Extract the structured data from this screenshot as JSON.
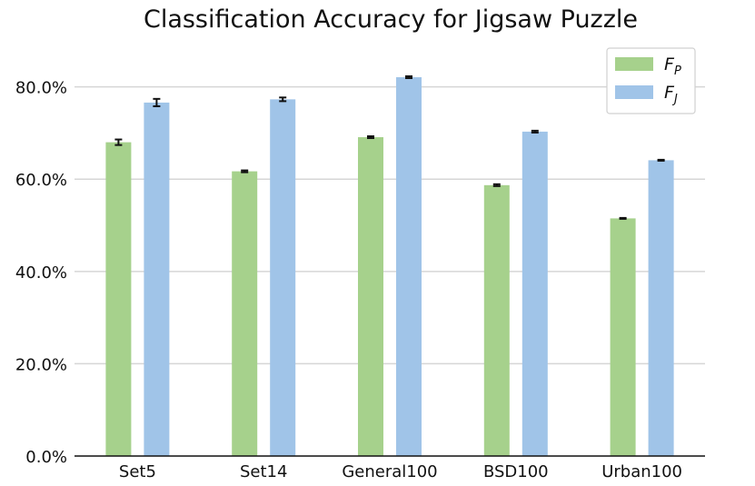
{
  "chart_data": {
    "type": "bar",
    "title": "Classification Accuracy for Jigsaw Puzzle",
    "xlabel": "",
    "ylabel": "",
    "categories": [
      "Set5",
      "Set14",
      "General100",
      "BSD100",
      "Urban100"
    ],
    "series": [
      {
        "name": "F_P",
        "label_main": "F",
        "label_sub": "P",
        "color": "#a6d18c",
        "values": [
          68.0,
          61.7,
          69.1,
          58.7,
          51.5
        ],
        "errors": [
          0.6,
          0.2,
          0.2,
          0.2,
          0.1
        ]
      },
      {
        "name": "F_J",
        "label_main": "F",
        "label_sub": "J",
        "color": "#a0c4e8",
        "values": [
          76.6,
          77.3,
          82.1,
          70.3,
          64.1
        ],
        "errors": [
          0.8,
          0.4,
          0.2,
          0.2,
          0.1
        ]
      }
    ],
    "ylim": [
      0,
      88
    ],
    "yticks": [
      0,
      20,
      40,
      60,
      80
    ],
    "ytick_labels": [
      "0.0%",
      "20.0%",
      "40.0%",
      "60.0%",
      "80.0%"
    ],
    "grid": "horizontal",
    "legend": "top-right"
  }
}
